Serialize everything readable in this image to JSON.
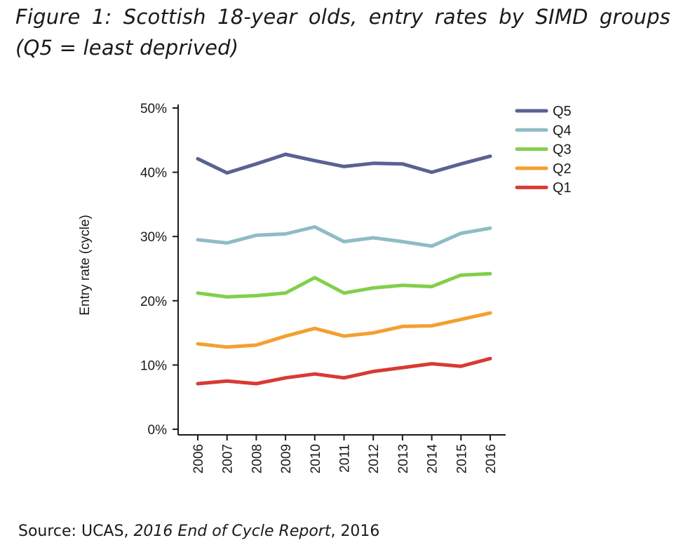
{
  "figure": {
    "title": "Figure 1: Scottish 18-year olds, entry rates by SIMD groups (Q5 = least deprived)"
  },
  "source": {
    "prefix": "Source: UCAS, ",
    "publication": "2016 End of Cycle Report",
    "suffix": ", 2016"
  },
  "chart_data": {
    "type": "line",
    "title": "",
    "xlabel": "",
    "ylabel": "Entry rate (cycle)",
    "x": [
      "2006",
      "2007",
      "2008",
      "2009",
      "2010",
      "2011",
      "2012",
      "2013",
      "2014",
      "2015",
      "2016"
    ],
    "ylim": [
      0,
      50
    ],
    "yticks": [
      0,
      10,
      20,
      30,
      40,
      50
    ],
    "ytick_labels": [
      "0%",
      "10%",
      "20%",
      "30%",
      "40%",
      "50%"
    ],
    "grid": false,
    "legend_position": "top-right",
    "series": [
      {
        "name": "Q5",
        "color": "#5a6291",
        "values": [
          42.1,
          39.9,
          41.3,
          42.8,
          41.8,
          40.9,
          41.4,
          41.3,
          40.0,
          41.3,
          42.5
        ]
      },
      {
        "name": "Q4",
        "color": "#8fbcc5",
        "values": [
          29.5,
          29.0,
          30.2,
          30.4,
          31.5,
          29.2,
          29.8,
          29.2,
          28.5,
          30.5,
          31.3
        ]
      },
      {
        "name": "Q3",
        "color": "#82cf4b",
        "values": [
          21.2,
          20.6,
          20.8,
          21.2,
          23.6,
          21.2,
          22.0,
          22.4,
          22.2,
          24.0,
          24.2
        ]
      },
      {
        "name": "Q2",
        "color": "#f3a02f",
        "values": [
          13.3,
          12.8,
          13.1,
          14.5,
          15.7,
          14.5,
          15.0,
          16.0,
          16.1,
          17.1,
          18.1
        ]
      },
      {
        "name": "Q1",
        "color": "#d83a33",
        "values": [
          7.1,
          7.5,
          7.1,
          8.0,
          8.6,
          8.0,
          9.0,
          9.6,
          10.2,
          9.8,
          11.0
        ]
      }
    ]
  }
}
